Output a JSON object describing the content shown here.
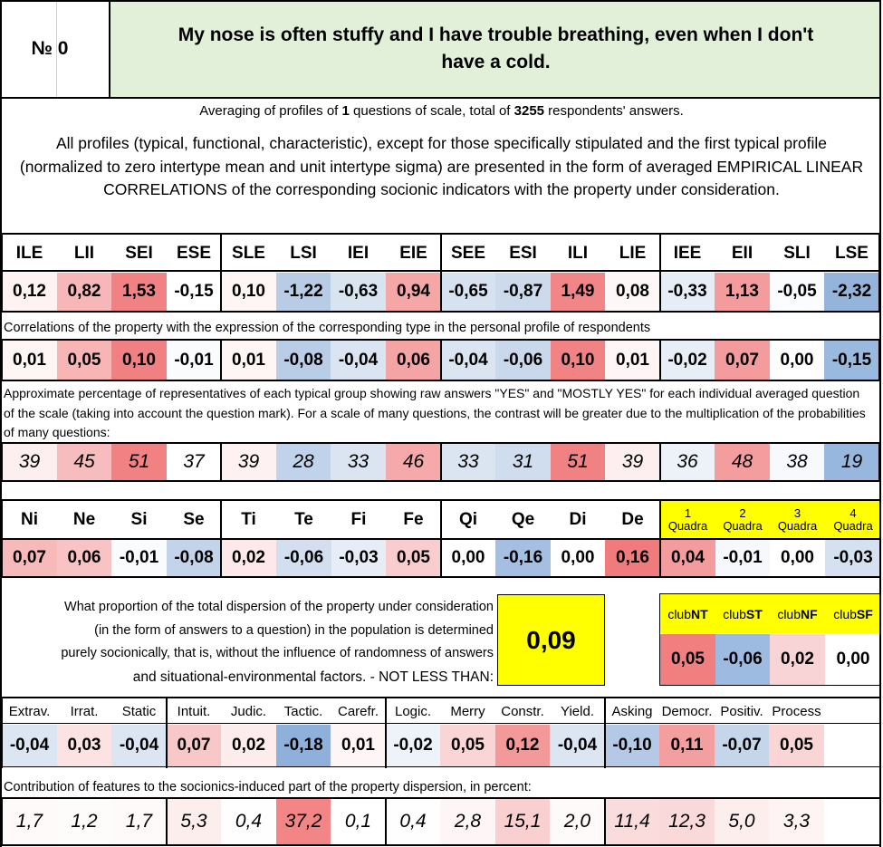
{
  "header": {
    "number_label": "№ 0",
    "question": "My nose is often stuffy and I have trouble breathing, even when I don't have a cold."
  },
  "summary": {
    "prefix": "Averaging of profiles of ",
    "questions_count": "1",
    "middle": " questions of scale, total of ",
    "respondents_count": "3255",
    "suffix": " respondents' answers."
  },
  "description": "All profiles (typical, functional, characteristic), except for those specifically stipulated and the first typical profile (normalized to zero intertype mean and unit intertype sigma) are presented in the form of averaged EMPIRICAL LINEAR CORRELATIONS of the corresponding socionic indicators with the property under consideration.",
  "types": [
    "ILE",
    "LII",
    "SEI",
    "ESE",
    "SLE",
    "LSI",
    "IEI",
    "EIE",
    "SEE",
    "ESI",
    "ILI",
    "LIE",
    "IEE",
    "EII",
    "SLI",
    "LSE"
  ],
  "type_profile": [
    "0,12",
    "0,82",
    "1,53",
    "-0,15",
    "0,10",
    "-1,22",
    "-0,63",
    "0,94",
    "-0,65",
    "-0,87",
    "1,49",
    "0,08",
    "-0,33",
    "1,13",
    "-0,05",
    "-2,32"
  ],
  "type_profile_colors": [
    "#fef2f2",
    "#f7b7b8",
    "#f08283",
    "#ffffff",
    "#fef5f5",
    "#b8cce6",
    "#d9e4f1",
    "#f5a6a7",
    "#d7e2f0",
    "#ccdaec",
    "#f18587",
    "#fef7f7",
    "#e6edf6",
    "#f49c9d",
    "#fafcfe",
    "#94b4dc"
  ],
  "corr_note": "Correlations of the property with the expression of the corresponding type in the personal profile of respondents",
  "type_corr": [
    "0,01",
    "0,05",
    "0,10",
    "-0,01",
    "0,01",
    "-0,08",
    "-0,04",
    "0,06",
    "-0,04",
    "-0,06",
    "0,10",
    "0,01",
    "-0,02",
    "0,07",
    "0,00",
    "-0,15"
  ],
  "type_corr_colors": [
    "#fef5f5",
    "#f7b5b6",
    "#f08081",
    "#fafbfd",
    "#fef5f5",
    "#b9cde6",
    "#dbe5f1",
    "#f5a4a5",
    "#dbe5f1",
    "#c9d8eb",
    "#f18384",
    "#fef6f6",
    "#e8eef6",
    "#f49c9d",
    "#ffffff",
    "#9ab9de"
  ],
  "pct_note": "Approximate percentage of representatives of each typical group showing raw answers \"YES\" and \"MOSTLY YES\" for each individual averaged question of the scale (taking into account the question mark). For a scale of many questions, the contrast will be greater due to the multiplication of the probabilities of many questions:",
  "type_pct": [
    "39",
    "45",
    "51",
    "37",
    "39",
    "28",
    "33",
    "46",
    "33",
    "31",
    "51",
    "39",
    "36",
    "48",
    "38",
    "19"
  ],
  "type_pct_colors": [
    "#fdeff0",
    "#f7bcbd",
    "#f08283",
    "#ffffff",
    "#fdf1f1",
    "#c0d3ea",
    "#dbe5f2",
    "#f5a9aa",
    "#dbe5f2",
    "#d0ddee",
    "#f08283",
    "#fdeff0",
    "#edf2f8",
    "#f49d9e",
    "#f8f9fc",
    "#98b7de"
  ],
  "functions": [
    "Ni",
    "Ne",
    "Si",
    "Se",
    "Ti",
    "Te",
    "Fi",
    "Fe",
    "Qi",
    "Qe",
    "Di",
    "De"
  ],
  "function_values": [
    "0,07",
    "0,06",
    "-0,01",
    "-0,08",
    "0,02",
    "-0,06",
    "-0,03",
    "0,05",
    "0,00",
    "-0,16",
    "0,00",
    "0,16"
  ],
  "function_colors": [
    "#f7b9ba",
    "#f8c3c4",
    "#fafbfd",
    "#c3d4ea",
    "#fde9ea",
    "#d3deef",
    "#e6edf6",
    "#f9cccd",
    "#ffffff",
    "#a4bfe1",
    "#ffffff",
    "#ef7b7c"
  ],
  "quadras": [
    {
      "num": "1",
      "label": "Quadra",
      "value": "0,04",
      "color": "#f49c9d"
    },
    {
      "num": "2",
      "label": "Quadra",
      "value": "-0,01",
      "color": "#f6f8fc"
    },
    {
      "num": "3",
      "label": "Quadra",
      "value": "0,00",
      "color": "#ffffff"
    },
    {
      "num": "4",
      "label": "Quadra",
      "value": "-0,03",
      "color": "#d5e0f0"
    }
  ],
  "quadra_header_color": "#ffff00",
  "dispersion": {
    "text_lines": [
      "What proportion of the total dispersion of the property under consideration",
      "(in the form of answers to a question) in the population is determined",
      "purely socionically, that is, without the influence of randomness of answers",
      "and situational-environmental factors. - NOT LESS THAN:"
    ],
    "value": "0,09"
  },
  "clubs": [
    {
      "prefix": "club",
      "bold": "NT",
      "value": "0,05",
      "color": "#f27f80"
    },
    {
      "prefix": "club",
      "bold": "ST",
      "value": "-0,06",
      "color": "#9dbbe0"
    },
    {
      "prefix": "club",
      "bold": "NF",
      "value": "0,02",
      "color": "#f8d4d6"
    },
    {
      "prefix": "club",
      "bold": "SF",
      "value": "0,00",
      "color": "#ffffff"
    }
  ],
  "features": [
    "Extrav.",
    "Irrat.",
    "Static",
    "Intuit.",
    "Judic.",
    "Tactic.",
    "Carefr.",
    "Logic.",
    "Merry",
    "Constr.",
    "Yield.",
    "Asking",
    "Democr.",
    "Positiv.",
    "Process"
  ],
  "feature_values": [
    "-0,04",
    "0,03",
    "-0,04",
    "0,07",
    "0,02",
    "-0,18",
    "0,01",
    "-0,02",
    "0,05",
    "0,12",
    "-0,04",
    "-0,10",
    "0,11",
    "-0,07",
    "0,05"
  ],
  "feature_colors": [
    "#dce6f2",
    "#fbe2e3",
    "#dce6f2",
    "#f8c8c9",
    "#fdecec",
    "#8eb0da",
    "#fef6f6",
    "#eef3f9",
    "#f9d5d6",
    "#f3999a",
    "#dce6f2",
    "#b3c9e5",
    "#f39e9f",
    "#c5d6eb",
    "#f9d5d6"
  ],
  "contrib_note": "Contribution of features to the socionics-induced part of the property dispersion, in percent:",
  "feature_contrib": [
    "1,7",
    "1,2",
    "1,7",
    "5,3",
    "0,4",
    "37,2",
    "0,1",
    "0,4",
    "2,8",
    "15,1",
    "2,0",
    "11,4",
    "12,3",
    "5,0",
    "3,3"
  ],
  "feature_contrib_colors": [
    "#fefafa",
    "#fefbfb",
    "#fefafa",
    "#fdeeee",
    "#fffefe",
    "#f38586",
    "#ffffff",
    "#fffefe",
    "#fef6f6",
    "#f9cfd0",
    "#fefafa",
    "#fbdcdd",
    "#fad9da",
    "#fdeeee",
    "#fef4f4"
  ],
  "title_bg": "#e2efd9",
  "yellow": "#ffff00"
}
